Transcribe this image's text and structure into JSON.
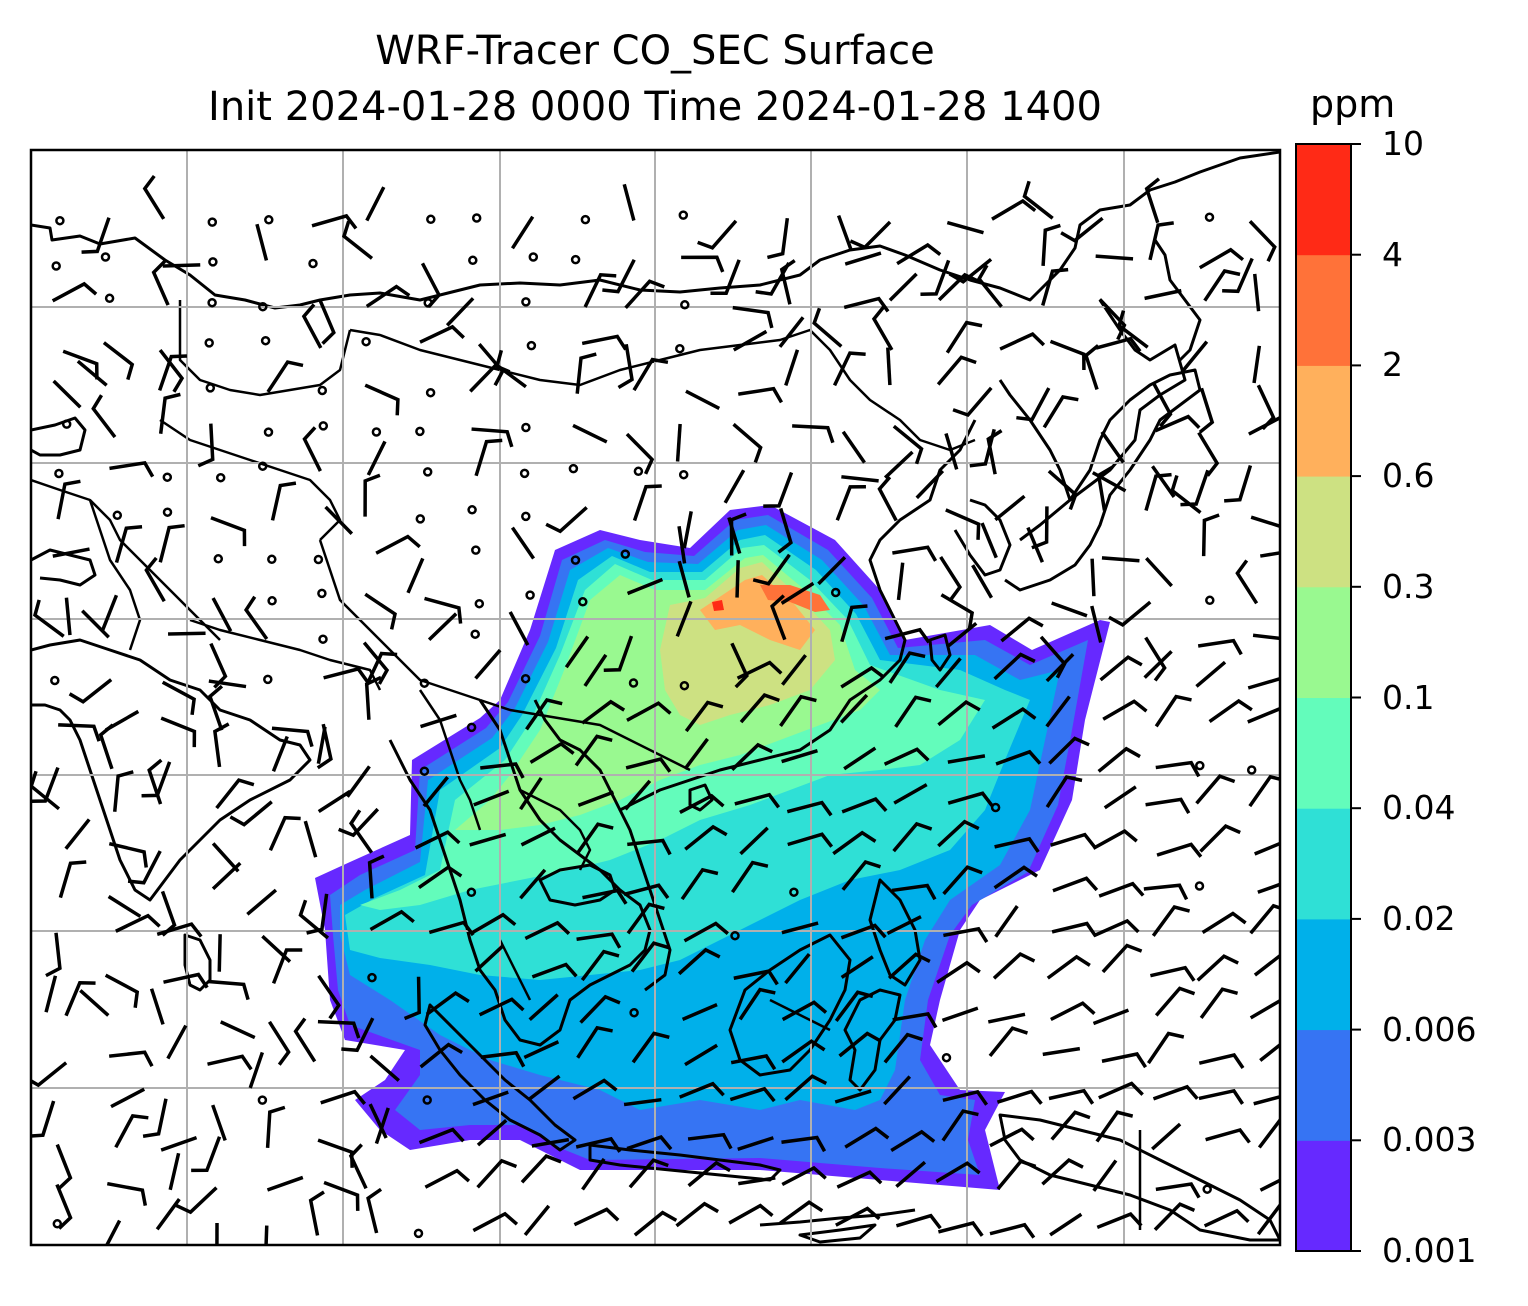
{
  "title": {
    "line1": "WRF-Tracer CO_SEC Surface",
    "line2": "Init 2024-01-28 0000 Time 2024-01-28 1400"
  },
  "colorbar": {
    "unit": "ppm",
    "levels": [
      "0.001",
      "0.003",
      "0.006",
      "0.02",
      "0.04",
      "0.1",
      "0.3",
      "0.6",
      "2",
      "4",
      "10"
    ],
    "colors": [
      "#6629ff",
      "#3674f3",
      "#00b0ea",
      "#2fe0d6",
      "#63fcbb",
      "#99f990",
      "#cde182",
      "#ffb05c",
      "#ff7239",
      "#ff2a16"
    ]
  },
  "map": {
    "gridlines": true,
    "layers": [
      "coastlines",
      "country-borders",
      "tracer-concentration-fill",
      "wind-barbs"
    ]
  }
}
